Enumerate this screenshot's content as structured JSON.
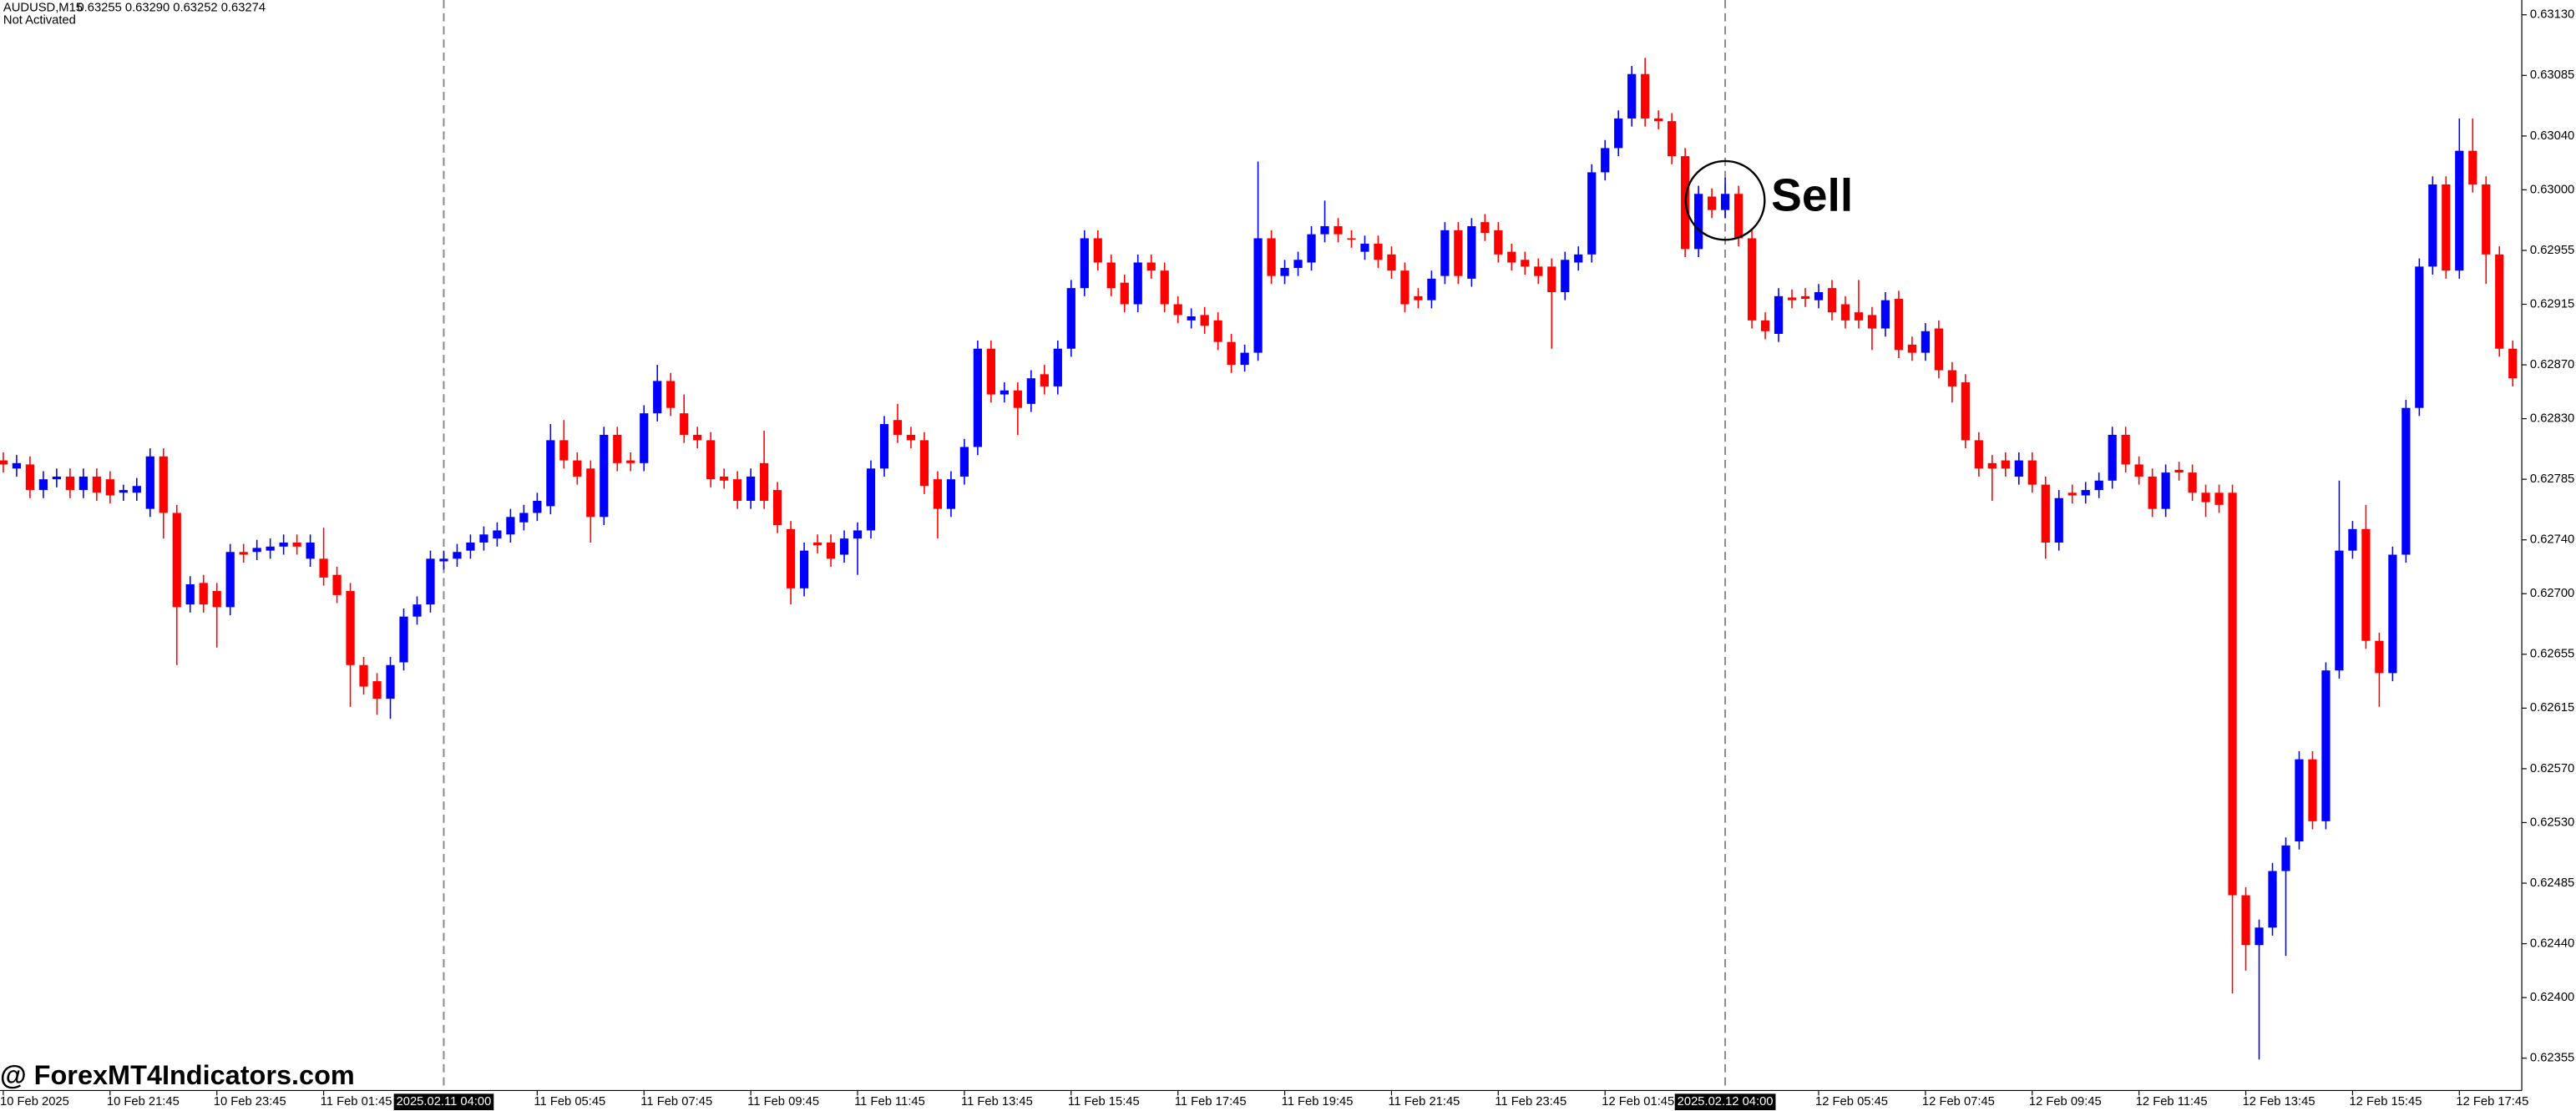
{
  "chart_data": {
    "type": "candlestick",
    "title": "AUDUSD,M15",
    "subtitle": "0.63255 0.63290 0.63252 0.63274",
    "status": "Not Activated",
    "watermark": "@ ForexMT4Indicators.com",
    "up_color": "#0000ff",
    "down_color": "#ff0000",
    "ylim": [
      0.62331,
      0.63141
    ],
    "yticks": [
      {
        "value": 0.6313,
        "label": "0.63130"
      },
      0.63085,
      {
        "value": 0.6304,
        "label": "0.63040"
      },
      {
        "value": 0.63,
        "label": "0.63000"
      },
      0.62955,
      0.62915,
      {
        "value": 0.6287,
        "label": "0.62870"
      },
      {
        "value": 0.6283,
        "label": "0.62830"
      },
      0.62785,
      {
        "value": 0.6274,
        "label": "0.62740"
      },
      {
        "value": 0.627,
        "label": "0.62700"
      },
      0.62655,
      0.62615,
      {
        "value": 0.6257,
        "label": "0.62570"
      },
      {
        "value": 0.6253,
        "label": "0.62530"
      },
      0.62485,
      {
        "value": 0.6244,
        "label": "0.62440"
      },
      {
        "value": 0.624,
        "label": "0.62400"
      },
      0.62355
    ],
    "xticks": [
      {
        "value": 0,
        "label": "10 Feb 2025"
      },
      {
        "value": 8,
        "label": "10 Feb 21:45"
      },
      {
        "value": 16,
        "label": "10 Feb 23:45"
      },
      {
        "value": 24,
        "label": "11 Feb 01:45"
      },
      {
        "value": 40,
        "label": "11 Feb 05:45"
      },
      {
        "value": 48,
        "label": "11 Feb 07:45"
      },
      {
        "value": 56,
        "label": "11 Feb 09:45"
      },
      {
        "value": 64,
        "label": "11 Feb 11:45"
      },
      {
        "value": 72,
        "label": "11 Feb 13:45"
      },
      {
        "value": 80,
        "label": "11 Feb 15:45"
      },
      {
        "value": 88,
        "label": "11 Feb 17:45"
      },
      {
        "value": 96,
        "label": "11 Feb 19:45"
      },
      {
        "value": 104,
        "label": "11 Feb 21:45"
      },
      {
        "value": 112,
        "label": "11 Feb 23:45"
      },
      {
        "value": 120,
        "label": "12 Feb 01:45"
      },
      {
        "value": 136,
        "label": "12 Feb 05:45"
      },
      {
        "value": 144,
        "label": "12 Feb 07:45"
      },
      {
        "value": 152,
        "label": "12 Feb 09:45"
      },
      {
        "value": 160,
        "label": "12 Feb 11:45"
      },
      {
        "value": 168,
        "label": "12 Feb 13:45"
      },
      {
        "value": 176,
        "label": "12 Feb 15:45"
      },
      {
        "value": 184,
        "label": "12 Feb 17:45"
      }
    ],
    "separators": [
      {
        "value": 33,
        "label": "2025.02.11 04:00"
      },
      {
        "value": 129,
        "label": "2025.02.12 04:00"
      }
    ],
    "annotations": [
      {
        "text": "Sell"
      }
    ],
    "open": [
      0.62799,
      0.62793,
      0.62796,
      0.62777,
      0.62785,
      0.62787,
      0.62777,
      0.62787,
      0.62785,
      0.62775,
      0.62775,
      0.62763,
      0.62802,
      0.6276,
      0.62692,
      0.62708,
      0.62702,
      0.6269,
      0.62731,
      0.62731,
      0.62732,
      0.62735,
      0.62738,
      0.62726,
      0.62726,
      0.62714,
      0.62702,
      0.62647,
      0.62635,
      0.62622,
      0.62649,
      0.62683,
      0.62692,
      0.62724,
      0.62726,
      0.62732,
      0.62738,
      0.62741,
      0.62744,
      0.62753,
      0.6276,
      0.62765,
      0.62814,
      0.62799,
      0.62793,
      0.62757,
      0.62818,
      0.62799,
      0.62797,
      0.62834,
      0.62858,
      0.62834,
      0.62818,
      0.62814,
      0.62787,
      0.62785,
      0.62769,
      0.62797,
      0.62777,
      0.62748,
      0.62704,
      0.62738,
      0.62738,
      0.62729,
      0.62741,
      0.62747,
      0.62793,
      0.62829,
      0.62818,
      0.62814,
      0.62785,
      0.62763,
      0.62787,
      0.62809,
      0.62882,
      0.62848,
      0.62851,
      0.62841,
      0.62863,
      0.62854,
      0.62882,
      0.62927,
      0.62964,
      0.62946,
      0.62931,
      0.62915,
      0.62946,
      0.6294,
      0.62915,
      0.62903,
      0.62907,
      0.62903,
      0.62887,
      0.6287,
      0.62879,
      0.62964,
      0.62936,
      0.62942,
      0.62946,
      0.62967,
      0.62973,
      0.62964,
      0.62954,
      0.6296,
      0.62952,
      0.6294,
      0.62921,
      0.62918,
      0.62936,
      0.6297,
      0.62934,
      0.62976,
      0.6297,
      0.62954,
      0.62948,
      0.62943,
      0.62943,
      0.62924,
      0.62946,
      0.62952,
      0.63013,
      0.63031,
      0.63053,
      0.63086,
      0.63053,
      0.63051,
      0.63025,
      0.62956,
      0.62995,
      0.62985,
      0.62997,
      0.62964,
      0.62903,
      0.62893,
      0.6292,
      0.62921,
      0.62918,
      0.62927,
      0.62915,
      0.62909,
      0.62907,
      0.62897,
      0.62919,
      0.62885,
      0.62879,
      0.62897,
      0.62866,
      0.62857,
      0.62814,
      0.62797,
      0.62799,
      0.62787,
      0.62799,
      0.62781,
      0.62738,
      0.62775,
      0.62773,
      0.62777,
      0.62784,
      0.62818,
      0.62796,
      0.62787,
      0.62763,
      0.62792,
      0.6279,
      0.62775,
      0.62775,
      0.62775,
      0.62476,
      0.62439,
      0.62452,
      0.62494,
      0.62516,
      0.62577,
      0.62531,
      0.62643,
      0.62732,
      0.62748,
      0.62665,
      0.62641,
      0.62729,
      0.62838,
      0.62943,
      0.63004,
      0.6294,
      0.63029,
      0.63004,
      0.62952,
      0.62882
    ],
    "high": [
      0.62805,
      0.62803,
      0.62802,
      0.62791,
      0.62793,
      0.62793,
      0.62793,
      0.62793,
      0.62791,
      0.62781,
      0.62786,
      0.62808,
      0.62808,
      0.62766,
      0.62713,
      0.62714,
      0.62708,
      0.62737,
      0.62737,
      0.6274,
      0.62741,
      0.62744,
      0.62744,
      0.62744,
      0.62749,
      0.6272,
      0.62708,
      0.62653,
      0.62641,
      0.62653,
      0.62689,
      0.62698,
      0.62732,
      0.62732,
      0.62737,
      0.62744,
      0.6275,
      0.62753,
      0.62763,
      0.62766,
      0.62775,
      0.62826,
      0.62829,
      0.62805,
      0.62799,
      0.62824,
      0.62824,
      0.62805,
      0.6284,
      0.6287,
      0.62864,
      0.62848,
      0.62824,
      0.6282,
      0.62793,
      0.62791,
      0.62793,
      0.62821,
      0.62783,
      0.62754,
      0.62738,
      0.62744,
      0.62744,
      0.62747,
      0.62753,
      0.62799,
      0.62832,
      0.62841,
      0.62824,
      0.6282,
      0.62791,
      0.62791,
      0.62815,
      0.62888,
      0.62888,
      0.62857,
      0.62857,
      0.62866,
      0.6287,
      0.62888,
      0.62933,
      0.6297,
      0.6297,
      0.62952,
      0.62937,
      0.62952,
      0.62952,
      0.62946,
      0.62921,
      0.62912,
      0.62913,
      0.62909,
      0.62893,
      0.62885,
      0.63021,
      0.6297,
      0.62948,
      0.62954,
      0.62973,
      0.62992,
      0.62979,
      0.6297,
      0.62966,
      0.62966,
      0.62958,
      0.62946,
      0.62927,
      0.6294,
      0.62976,
      0.62976,
      0.62979,
      0.62982,
      0.62976,
      0.6296,
      0.62954,
      0.62949,
      0.62949,
      0.62954,
      0.62958,
      0.63019,
      0.63037,
      0.63059,
      0.63092,
      0.63098,
      0.63059,
      0.63057,
      0.63031,
      0.63003,
      0.63001,
      0.63009,
      0.63003,
      0.6297,
      0.62909,
      0.62927,
      0.62926,
      0.62927,
      0.6293,
      0.62933,
      0.62921,
      0.62933,
      0.62913,
      0.62924,
      0.62925,
      0.62891,
      0.62901,
      0.62903,
      0.62872,
      0.62863,
      0.6282,
      0.62803,
      0.62805,
      0.62805,
      0.62805,
      0.62787,
      0.62777,
      0.62781,
      0.62783,
      0.6279,
      0.62824,
      0.62824,
      0.62802,
      0.62793,
      0.62796,
      0.62798,
      0.62796,
      0.62781,
      0.62781,
      0.62781,
      0.62482,
      0.62458,
      0.625,
      0.62519,
      0.62583,
      0.62583,
      0.62649,
      0.62784,
      0.62754,
      0.62766,
      0.62671,
      0.62735,
      0.62844,
      0.62949,
      0.6301,
      0.6301,
      0.63053,
      0.63053,
      0.6301,
      0.62958,
      0.62888
    ],
    "low": [
      0.6279,
      0.62787,
      0.62771,
      0.62771,
      0.62779,
      0.62771,
      0.62771,
      0.62769,
      0.62767,
      0.62769,
      0.62769,
      0.62757,
      0.62741,
      0.62647,
      0.62686,
      0.62686,
      0.6266,
      0.62684,
      0.62723,
      0.62725,
      0.62726,
      0.62729,
      0.62729,
      0.6272,
      0.62706,
      0.62693,
      0.62616,
      0.62625,
      0.6261,
      0.62607,
      0.62643,
      0.62677,
      0.62686,
      0.62718,
      0.6272,
      0.62726,
      0.62732,
      0.62735,
      0.62738,
      0.62747,
      0.62754,
      0.62759,
      0.62793,
      0.62781,
      0.62738,
      0.62751,
      0.62791,
      0.62791,
      0.62791,
      0.62828,
      0.62832,
      0.62812,
      0.62808,
      0.62779,
      0.62778,
      0.62763,
      0.62763,
      0.62763,
      0.62745,
      0.62692,
      0.62698,
      0.6273,
      0.6272,
      0.62723,
      0.62714,
      0.62741,
      0.62787,
      0.62812,
      0.62808,
      0.62774,
      0.62741,
      0.62757,
      0.62781,
      0.62803,
      0.62842,
      0.62842,
      0.62818,
      0.62835,
      0.62848,
      0.62848,
      0.62876,
      0.62921,
      0.6294,
      0.62921,
      0.62909,
      0.62909,
      0.62934,
      0.62909,
      0.62901,
      0.62897,
      0.62893,
      0.62881,
      0.62864,
      0.62865,
      0.62873,
      0.6293,
      0.6293,
      0.62936,
      0.6294,
      0.62961,
      0.62961,
      0.62957,
      0.62948,
      0.62942,
      0.62934,
      0.62909,
      0.62912,
      0.62912,
      0.6293,
      0.6293,
      0.62928,
      0.62962,
      0.62946,
      0.6294,
      0.62937,
      0.6293,
      0.62882,
      0.62918,
      0.6294,
      0.62946,
      0.63007,
      0.63025,
      0.63047,
      0.63047,
      0.63045,
      0.63019,
      0.6295,
      0.6295,
      0.62979,
      0.62979,
      0.62958,
      0.62897,
      0.62889,
      0.62887,
      0.62912,
      0.62913,
      0.62912,
      0.62903,
      0.62897,
      0.62897,
      0.62881,
      0.62891,
      0.62875,
      0.62873,
      0.62873,
      0.6286,
      0.62842,
      0.62808,
      0.62787,
      0.62769,
      0.62787,
      0.62781,
      0.62775,
      0.62726,
      0.62732,
      0.62767,
      0.62767,
      0.62771,
      0.62778,
      0.6279,
      0.62781,
      0.62757,
      0.62757,
      0.62784,
      0.62769,
      0.62757,
      0.6276,
      0.62403,
      0.6242,
      0.62354,
      0.62446,
      0.62431,
      0.6251,
      0.62525,
      0.62525,
      0.62637,
      0.62726,
      0.62659,
      0.62616,
      0.62635,
      0.62723,
      0.62832,
      0.62937,
      0.62934,
      0.62934,
      0.62998,
      0.6293,
      0.62876,
      0.62854
    ],
    "close": [
      0.62796,
      0.62797,
      0.62777,
      0.62785,
      0.62787,
      0.62777,
      0.62787,
      0.62775,
      0.62773,
      0.62777,
      0.6278,
      0.62802,
      0.6276,
      0.6269,
      0.62707,
      0.62692,
      0.6269,
      0.62731,
      0.62729,
      0.62734,
      0.62735,
      0.62738,
      0.62735,
      0.62738,
      0.62712,
      0.62699,
      0.62647,
      0.62631,
      0.62622,
      0.62647,
      0.62683,
      0.62692,
      0.62726,
      0.62726,
      0.62731,
      0.62738,
      0.62744,
      0.62747,
      0.62757,
      0.6276,
      0.62769,
      0.62814,
      0.62799,
      0.62787,
      0.62757,
      0.62818,
      0.62797,
      0.62797,
      0.62834,
      0.62858,
      0.62838,
      0.62818,
      0.62814,
      0.62785,
      0.62784,
      0.62769,
      0.62787,
      0.62769,
      0.62751,
      0.62704,
      0.62732,
      0.62736,
      0.62726,
      0.62741,
      0.62747,
      0.62793,
      0.62826,
      0.62818,
      0.62814,
      0.6278,
      0.62763,
      0.62785,
      0.62809,
      0.62882,
      0.62848,
      0.62851,
      0.62838,
      0.6286,
      0.62854,
      0.62882,
      0.62927,
      0.62964,
      0.62946,
      0.62927,
      0.62915,
      0.62946,
      0.6294,
      0.62915,
      0.62907,
      0.62906,
      0.62899,
      0.62887,
      0.6287,
      0.62879,
      0.62964,
      0.62936,
      0.62942,
      0.62948,
      0.62967,
      0.62973,
      0.62967,
      0.62963,
      0.6296,
      0.62948,
      0.6294,
      0.62915,
      0.62918,
      0.62934,
      0.6297,
      0.62936,
      0.62973,
      0.62968,
      0.62952,
      0.62946,
      0.62943,
      0.62936,
      0.62924,
      0.62948,
      0.62952,
      0.63013,
      0.63031,
      0.63053,
      0.63086,
      0.63053,
      0.63051,
      0.63025,
      0.62956,
      0.62997,
      0.62985,
      0.62997,
      0.62964,
      0.62903,
      0.62895,
      0.62921,
      0.62918,
      0.62919,
      0.62924,
      0.62909,
      0.62903,
      0.62903,
      0.62897,
      0.62918,
      0.62881,
      0.62879,
      0.62895,
      0.62866,
      0.62854,
      0.62814,
      0.62793,
      0.62793,
      0.62793,
      0.62799,
      0.62781,
      0.62738,
      0.62771,
      0.62773,
      0.62777,
      0.62784,
      0.62818,
      0.62796,
      0.62787,
      0.62763,
      0.6279,
      0.6279,
      0.62775,
      0.62768,
      0.62766,
      0.62476,
      0.62439,
      0.62452,
      0.62494,
      0.62513,
      0.62577,
      0.62531,
      0.62643,
      0.62732,
      0.62748,
      0.62665,
      0.62641,
      0.62729,
      0.62838,
      0.62943,
      0.63004,
      0.6294,
      0.63029,
      0.63004,
      0.62952,
      0.62882,
      0.6286
    ]
  }
}
